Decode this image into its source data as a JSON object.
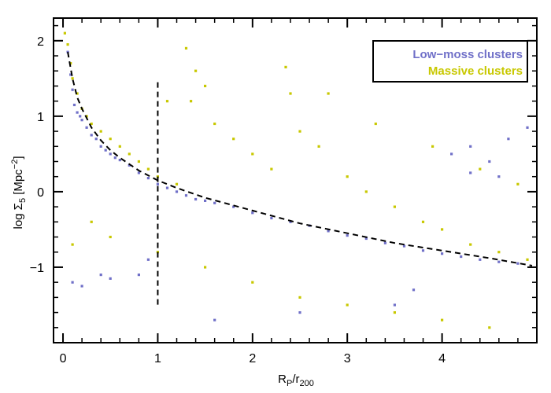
{
  "chart_data": {
    "type": "scatter",
    "title": "",
    "xlabel": {
      "base": "R",
      "sub1": "P",
      "mid": "/r",
      "sub2": "200"
    },
    "ylabel": {
      "pre": "log ",
      "sym": "Σ",
      "sub": "5",
      "unit_pre": " [Mpc",
      "sup": "−2",
      "unit_post": "]"
    },
    "xlim": [
      -0.1,
      5.0
    ],
    "ylim": [
      -2.0,
      2.3
    ],
    "x_ticks": [
      0,
      1,
      2,
      3,
      4
    ],
    "x_tick_labels": [
      "0",
      "1",
      "2",
      "3",
      "4"
    ],
    "y_ticks": [
      -1,
      0,
      1,
      2
    ],
    "y_tick_labels": [
      "−1",
      "0",
      "1",
      "2"
    ],
    "grid": false,
    "legend_position": "top-right",
    "series": [
      {
        "name": "Low−moss clusters",
        "color": "#7070c8",
        "points": [
          [
            0.05,
            1.85
          ],
          [
            0.08,
            1.55
          ],
          [
            0.1,
            1.35
          ],
          [
            0.12,
            1.15
          ],
          [
            0.15,
            1.05
          ],
          [
            0.18,
            1.0
          ],
          [
            0.2,
            0.95
          ],
          [
            0.25,
            0.85
          ],
          [
            0.3,
            0.75
          ],
          [
            0.35,
            0.7
          ],
          [
            0.4,
            0.6
          ],
          [
            0.45,
            0.55
          ],
          [
            0.5,
            0.5
          ],
          [
            0.55,
            0.45
          ],
          [
            0.6,
            0.42
          ],
          [
            0.7,
            0.35
          ],
          [
            0.8,
            0.25
          ],
          [
            0.9,
            0.18
          ],
          [
            1.0,
            0.1
          ],
          [
            1.1,
            0.05
          ],
          [
            1.2,
            0.0
          ],
          [
            1.3,
            -0.05
          ],
          [
            1.4,
            -0.1
          ],
          [
            1.5,
            -0.12
          ],
          [
            1.6,
            -0.15
          ],
          [
            1.8,
            -0.2
          ],
          [
            2.0,
            -0.28
          ],
          [
            2.2,
            -0.35
          ],
          [
            2.4,
            -0.4
          ],
          [
            2.6,
            -0.45
          ],
          [
            2.8,
            -0.52
          ],
          [
            3.0,
            -0.58
          ],
          [
            3.2,
            -0.62
          ],
          [
            3.4,
            -0.68
          ],
          [
            3.6,
            -0.72
          ],
          [
            3.8,
            -0.78
          ],
          [
            4.0,
            -0.82
          ],
          [
            4.2,
            -0.86
          ],
          [
            4.4,
            -0.9
          ],
          [
            4.6,
            -0.93
          ],
          [
            4.8,
            -0.95
          ],
          [
            0.1,
            -1.2
          ],
          [
            0.2,
            -1.25
          ],
          [
            0.4,
            -1.1
          ],
          [
            0.5,
            -1.15
          ],
          [
            0.8,
            -1.1
          ],
          [
            0.9,
            -0.9
          ],
          [
            4.1,
            0.5
          ],
          [
            4.3,
            0.6
          ],
          [
            4.5,
            0.4
          ],
          [
            4.7,
            0.7
          ],
          [
            4.9,
            0.85
          ],
          [
            4.6,
            0.2
          ],
          [
            4.3,
            0.25
          ],
          [
            3.5,
            -1.5
          ],
          [
            3.7,
            -1.3
          ],
          [
            2.5,
            -1.6
          ],
          [
            1.6,
            -1.7
          ]
        ]
      },
      {
        "name": "Massive clusters",
        "color": "#c8c800",
        "points": [
          [
            0.02,
            2.1
          ],
          [
            0.05,
            1.95
          ],
          [
            0.08,
            1.7
          ],
          [
            0.1,
            1.5
          ],
          [
            0.15,
            1.3
          ],
          [
            0.2,
            1.1
          ],
          [
            0.25,
            1.0
          ],
          [
            0.3,
            0.9
          ],
          [
            0.4,
            0.8
          ],
          [
            0.5,
            0.7
          ],
          [
            0.6,
            0.6
          ],
          [
            0.7,
            0.5
          ],
          [
            0.8,
            0.4
          ],
          [
            0.9,
            0.3
          ],
          [
            1.0,
            0.2
          ],
          [
            1.2,
            0.1
          ],
          [
            1.3,
            1.9
          ],
          [
            1.4,
            1.6
          ],
          [
            1.35,
            1.2
          ],
          [
            1.6,
            0.9
          ],
          [
            1.8,
            0.7
          ],
          [
            2.0,
            0.5
          ],
          [
            2.2,
            0.3
          ],
          [
            2.35,
            1.65
          ],
          [
            2.4,
            1.3
          ],
          [
            2.5,
            0.8
          ],
          [
            2.7,
            0.6
          ],
          [
            3.0,
            0.2
          ],
          [
            3.2,
            0.0
          ],
          [
            3.5,
            -0.2
          ],
          [
            3.8,
            -0.4
          ],
          [
            4.0,
            -0.5
          ],
          [
            4.3,
            -0.7
          ],
          [
            4.6,
            -0.8
          ],
          [
            4.9,
            -0.9
          ],
          [
            0.1,
            -0.7
          ],
          [
            0.3,
            -0.4
          ],
          [
            0.5,
            -0.6
          ],
          [
            1.0,
            -0.8
          ],
          [
            1.5,
            -1.0
          ],
          [
            2.0,
            -1.2
          ],
          [
            2.5,
            -1.4
          ],
          [
            3.0,
            -1.5
          ],
          [
            3.5,
            -1.6
          ],
          [
            4.0,
            -1.7
          ],
          [
            4.5,
            -1.8
          ],
          [
            1.1,
            1.2
          ],
          [
            1.5,
            1.4
          ],
          [
            2.8,
            1.3
          ],
          [
            3.3,
            0.9
          ],
          [
            3.9,
            0.6
          ],
          [
            4.4,
            0.3
          ],
          [
            4.8,
            0.1
          ]
        ]
      }
    ],
    "reference_curve": {
      "x": [
        0.05,
        0.1,
        0.15,
        0.2,
        0.3,
        0.4,
        0.5,
        0.6,
        0.8,
        1.0,
        1.2,
        1.5,
        2.0,
        2.5,
        3.0,
        3.5,
        4.0,
        4.5,
        4.95
      ],
      "y": [
        1.85,
        1.5,
        1.25,
        1.1,
        0.85,
        0.68,
        0.55,
        0.45,
        0.28,
        0.15,
        0.05,
        -0.08,
        -0.25,
        -0.42,
        -0.55,
        -0.68,
        -0.78,
        -0.88,
        -0.98
      ]
    },
    "vertical_marker": {
      "x": 1.0,
      "y_range": [
        -1.5,
        1.45
      ]
    }
  }
}
